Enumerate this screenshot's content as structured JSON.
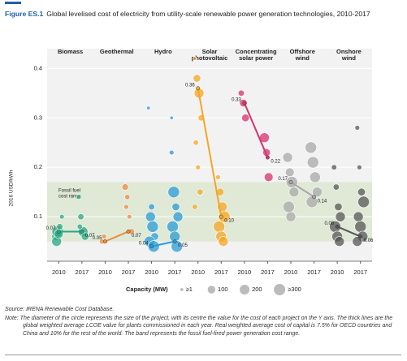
{
  "figure_label": "Figure ES.1",
  "chart_data": {
    "type": "bubble",
    "title": "Global levelised cost of electricity from utility-scale renewable power generation technologies, 2010-2017",
    "ylabel": "2016 USD/kWh",
    "ylim": [
      0.01,
      0.44
    ],
    "yticks": [
      0.1,
      0.2,
      0.3,
      0.4
    ],
    "years": [
      "2010",
      "2017"
    ],
    "band": {
      "label": "Fossil fuel cost range",
      "range": [
        0.05,
        0.17
      ],
      "color": "#dde8d3"
    },
    "series": [
      {
        "name": "Biomass",
        "color": "#2aa784",
        "values": [
          0.07,
          0.07
        ],
        "projects_2010": [
          [
            0.06,
            100
          ],
          [
            0.07,
            300
          ],
          [
            0.08,
            50
          ],
          [
            0.1,
            20
          ],
          [
            0.05,
            200
          ],
          [
            0.065,
            150
          ]
        ],
        "projects_2017": [
          [
            0.14,
            20
          ],
          [
            0.1,
            50
          ],
          [
            0.07,
            200
          ],
          [
            0.06,
            100
          ],
          [
            0.08,
            30
          ]
        ]
      },
      {
        "name": "Geothermal",
        "color": "#ef8a3c",
        "values": [
          0.05,
          0.07
        ],
        "projects_2010": [
          [
            0.05,
            30
          ],
          [
            0.06,
            20
          ]
        ],
        "projects_2017": [
          [
            0.16,
            60
          ],
          [
            0.14,
            30
          ],
          [
            0.1,
            20
          ],
          [
            0.07,
            50
          ],
          [
            0.12,
            20
          ]
        ]
      },
      {
        "name": "Hydro",
        "color": "#2b9bd6",
        "values": [
          0.04,
          0.05
        ],
        "projects_2010": [
          [
            0.32,
            5
          ],
          [
            0.1,
            200
          ],
          [
            0.08,
            300
          ],
          [
            0.06,
            100
          ],
          [
            0.05,
            250
          ],
          [
            0.12,
            50
          ],
          [
            0.04,
            300
          ]
        ],
        "projects_2017": [
          [
            0.23,
            20
          ],
          [
            0.15,
            300
          ],
          [
            0.12,
            100
          ],
          [
            0.1,
            200
          ],
          [
            0.08,
            300
          ],
          [
            0.06,
            250
          ],
          [
            0.04,
            300
          ],
          [
            0.3,
            5
          ]
        ]
      },
      {
        "name": "Solar photovoltaic",
        "color": "#f5a623",
        "values": [
          0.36,
          0.1
        ],
        "value_labels": [
          "0.36",
          "0.10"
        ],
        "projects_2010": [
          [
            0.42,
            5
          ],
          [
            0.38,
            100
          ],
          [
            0.35,
            200
          ],
          [
            0.3,
            50
          ],
          [
            0.25,
            30
          ],
          [
            0.2,
            20
          ],
          [
            0.15,
            50
          ],
          [
            0.12,
            30
          ]
        ],
        "projects_2017": [
          [
            0.18,
            20
          ],
          [
            0.15,
            100
          ],
          [
            0.12,
            200
          ],
          [
            0.1,
            300
          ],
          [
            0.08,
            300
          ],
          [
            0.06,
            250
          ],
          [
            0.05,
            200
          ]
        ]
      },
      {
        "name": "Concentrating solar power",
        "color": "#d6336c",
        "values": [
          0.33,
          0.22
        ],
        "projects_2010": [
          [
            0.35,
            50
          ],
          [
            0.33,
            100
          ],
          [
            0.3,
            100
          ]
        ],
        "projects_2017": [
          [
            0.26,
            200
          ],
          [
            0.23,
            100
          ],
          [
            0.18,
            150
          ]
        ]
      },
      {
        "name": "Offshore wind",
        "color": "#a8a8a8",
        "values": [
          0.17,
          0.14
        ],
        "projects_2010": [
          [
            0.22,
            200
          ],
          [
            0.19,
            150
          ],
          [
            0.17,
            300
          ],
          [
            0.15,
            200
          ],
          [
            0.12,
            300
          ],
          [
            0.1,
            200
          ]
        ],
        "projects_2017": [
          [
            0.24,
            300
          ],
          [
            0.21,
            300
          ],
          [
            0.18,
            250
          ],
          [
            0.15,
            200
          ],
          [
            0.13,
            300
          ]
        ]
      },
      {
        "name": "Onshore wind",
        "color": "#555555",
        "values": [
          0.08,
          0.06
        ],
        "projects_2010": [
          [
            0.2,
            30
          ],
          [
            0.16,
            50
          ],
          [
            0.12,
            100
          ],
          [
            0.1,
            200
          ],
          [
            0.08,
            300
          ],
          [
            0.06,
            250
          ],
          [
            0.05,
            200
          ]
        ],
        "projects_2017": [
          [
            0.28,
            20
          ],
          [
            0.2,
            20
          ],
          [
            0.15,
            100
          ],
          [
            0.13,
            300
          ],
          [
            0.1,
            200
          ],
          [
            0.08,
            300
          ],
          [
            0.06,
            250
          ],
          [
            0.05,
            200
          ]
        ]
      }
    ],
    "legend": {
      "title": "Capacity (MW)",
      "sizes": [
        {
          "value": 1,
          "label": "≥1"
        },
        100,
        200,
        {
          "value": 300,
          "label": "≥300"
        }
      ]
    }
  },
  "source": "Source: IRENA Renewable Cost Database.",
  "note": "Note: The diameter of the circle represents the size of the project, with its centre the value for the cost of each project on the Y axis. The thick lines are the global weighted average LCOE value for plants commissioned in each year. Real weighted average cost of capital is 7.5% for OECD countries and China and 10% for the rest of the world. The band represents the fossil fuel-fired power generation cost range."
}
